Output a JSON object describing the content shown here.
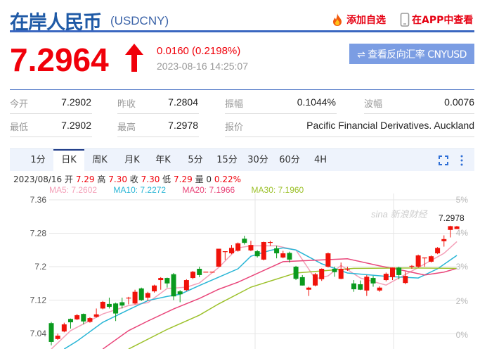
{
  "header": {
    "title": "在岸人民币",
    "code": "(USDCNY)",
    "add_watch": "添加自选",
    "view_app": "在APP中查看"
  },
  "quote": {
    "price": "7.2964",
    "direction": "up",
    "change": "0.0160 (0.2198%)",
    "time": "2023-08-16 14:25:07",
    "reverse_button": "⇌ 查看反向汇率 CNYUSD"
  },
  "stats": [
    {
      "label": "今开",
      "value": "7.2902"
    },
    {
      "label": "昨收",
      "value": "7.2804"
    },
    {
      "label": "振幅",
      "value": "0.1044%"
    },
    {
      "label": "波幅",
      "value": "0.0076"
    },
    {
      "label": "最低",
      "value": "7.2902"
    },
    {
      "label": "最高",
      "value": "7.2978"
    },
    {
      "label": "报价",
      "value": "Pacific Financial Derivatives. Auckland"
    }
  ],
  "tabs": [
    "1分",
    "日K",
    "周K",
    "月K",
    "年K",
    "5分",
    "15分",
    "30分",
    "60分",
    "4H"
  ],
  "active_tab": "日K",
  "info": {
    "date": "2023/08/16",
    "open_label": "开",
    "open": "7.29",
    "high_label": "高",
    "high": "7.30",
    "close_label": "收",
    "close": "7.30",
    "low_label": "低",
    "low": "7.29",
    "vol_label": "量",
    "vol": "0",
    "pct": "0.22%"
  },
  "ma_legend": [
    {
      "text": "MA5: 7.2602",
      "color": "#f4a0b8"
    },
    {
      "text": "MA10: 7.2272",
      "color": "#29b6d6"
    },
    {
      "text": "MA20: 7.1966",
      "color": "#e9467a"
    },
    {
      "text": "MA30: 7.1960",
      "color": "#9cc12a"
    }
  ],
  "colors": {
    "up": "#f0120a",
    "down": "#0a9a1e",
    "accent": "#1f5aa6"
  },
  "watermark": "sina 新浪财经",
  "chart_data": {
    "type": "candlestick",
    "y_ticks": [
      "7.36",
      "7.28",
      "7.2",
      "7.12",
      "7.04"
    ],
    "pct_ticks": [
      "5%",
      "4%",
      "3%",
      "2%",
      "0%"
    ],
    "ylim": [
      7.0,
      7.36
    ],
    "high_marker": "7.2978",
    "candles": [
      [
        7.065,
        7.068,
        7.012,
        7.02
      ],
      [
        7.027,
        7.04,
        7.025,
        7.035
      ],
      [
        7.045,
        7.066,
        7.043,
        7.062
      ],
      [
        7.075,
        7.076,
        7.052,
        7.067
      ],
      [
        7.074,
        7.087,
        7.072,
        7.084
      ],
      [
        7.087,
        7.088,
        7.062,
        7.069
      ],
      [
        7.068,
        7.079,
        7.066,
        7.077
      ],
      [
        7.08,
        7.1,
        7.078,
        7.086
      ],
      [
        7.1,
        7.118,
        7.098,
        7.116
      ],
      [
        7.111,
        7.126,
        7.1,
        7.104
      ],
      [
        7.112,
        7.114,
        7.07,
        7.088
      ],
      [
        7.115,
        7.126,
        7.1,
        7.107
      ],
      [
        7.126,
        7.128,
        7.11,
        7.126
      ],
      [
        7.112,
        7.145,
        7.11,
        7.14
      ],
      [
        7.148,
        7.15,
        7.118,
        7.12
      ],
      [
        7.126,
        7.14,
        7.118,
        7.137
      ],
      [
        7.141,
        7.157,
        7.138,
        7.155
      ],
      [
        7.168,
        7.175,
        7.145,
        7.173
      ],
      [
        7.173,
        7.174,
        7.15,
        7.16
      ],
      [
        7.182,
        7.185,
        7.12,
        7.129
      ],
      [
        7.141,
        7.144,
        7.115,
        7.134
      ],
      [
        7.144,
        7.17,
        7.142,
        7.168
      ],
      [
        7.173,
        7.19,
        7.17,
        7.188
      ],
      [
        7.195,
        7.2,
        7.175,
        7.18
      ],
      [
        7.188,
        7.188,
        7.188,
        7.188
      ],
      [
        7.188,
        7.188,
        7.188,
        7.188
      ],
      [
        7.2,
        7.243,
        7.2,
        7.243
      ],
      [
        7.237,
        7.237,
        7.216,
        7.237
      ],
      [
        7.232,
        7.252,
        7.23,
        7.245
      ],
      [
        7.238,
        7.258,
        7.236,
        7.256
      ],
      [
        7.267,
        7.274,
        7.253,
        7.257
      ],
      [
        7.239,
        7.262,
        7.237,
        7.252
      ],
      [
        7.237,
        7.24,
        7.222,
        7.225
      ],
      [
        7.217,
        7.26,
        7.215,
        7.259
      ],
      [
        7.259,
        7.262,
        7.25,
        7.259
      ],
      [
        7.244,
        7.25,
        7.22,
        7.232
      ],
      [
        7.222,
        7.238,
        7.22,
        7.232
      ],
      [
        7.233,
        7.236,
        7.21,
        7.217
      ],
      [
        7.2,
        7.202,
        7.168,
        7.171
      ],
      [
        7.175,
        7.18,
        7.155,
        7.155
      ],
      [
        7.145,
        7.152,
        7.13,
        7.15
      ],
      [
        7.155,
        7.185,
        7.153,
        7.182
      ],
      [
        7.17,
        7.196,
        7.166,
        7.195
      ],
      [
        7.2,
        7.234,
        7.198,
        7.232
      ],
      [
        7.195,
        7.2,
        7.176,
        7.187
      ],
      [
        7.171,
        7.21,
        7.17,
        7.195
      ],
      [
        7.195,
        7.2,
        7.19,
        7.195
      ],
      [
        7.16,
        7.168,
        7.14,
        7.146
      ],
      [
        7.158,
        7.167,
        7.144,
        7.145
      ],
      [
        7.143,
        7.18,
        7.13,
        7.176
      ],
      [
        7.173,
        7.178,
        7.152,
        7.16
      ],
      [
        7.143,
        7.153,
        7.14,
        7.15
      ],
      [
        7.168,
        7.186,
        7.165,
        7.183
      ],
      [
        7.175,
        7.198,
        7.168,
        7.198
      ],
      [
        7.198,
        7.2,
        7.17,
        7.18
      ],
      [
        7.161,
        7.188,
        7.158,
        7.178
      ],
      [
        7.2,
        7.204,
        7.195,
        7.202
      ],
      [
        7.2,
        7.229,
        7.198,
        7.227
      ],
      [
        7.222,
        7.222,
        7.2,
        7.222
      ],
      [
        7.212,
        7.227,
        7.21,
        7.225
      ],
      [
        7.232,
        7.247,
        7.23,
        7.245
      ],
      [
        7.261,
        7.275,
        7.248,
        7.266
      ],
      [
        7.288,
        7.298,
        7.27,
        7.297
      ],
      [
        7.2902,
        7.2978,
        7.2902,
        7.2964
      ]
    ],
    "ma": [
      {
        "name": "MA5",
        "color": "#f4a0b8",
        "points": [
          [
            0,
            7.003
          ],
          [
            3,
            7.047
          ],
          [
            8,
            7.087
          ],
          [
            12,
            7.107
          ],
          [
            15,
            7.114
          ],
          [
            18,
            7.148
          ],
          [
            21,
            7.151
          ],
          [
            23,
            7.161
          ],
          [
            26,
            7.198
          ],
          [
            29,
            7.245
          ],
          [
            31,
            7.25
          ],
          [
            35,
            7.25
          ],
          [
            38,
            7.24
          ],
          [
            41,
            7.171
          ],
          [
            43,
            7.178
          ],
          [
            45,
            7.203
          ],
          [
            48,
            7.173
          ],
          [
            52,
            7.156
          ],
          [
            54,
            7.173
          ],
          [
            57,
            7.198
          ],
          [
            61,
            7.232
          ],
          [
            63,
            7.26
          ]
        ]
      },
      {
        "name": "MA10",
        "color": "#29b6d6",
        "points": [
          [
            2,
            7.003
          ],
          [
            4,
            7.022
          ],
          [
            8,
            7.067
          ],
          [
            12,
            7.097
          ],
          [
            15,
            7.119
          ],
          [
            18,
            7.129
          ],
          [
            20,
            7.134
          ],
          [
            23,
            7.155
          ],
          [
            26,
            7.175
          ],
          [
            29,
            7.195
          ],
          [
            31,
            7.225
          ],
          [
            34,
            7.239
          ],
          [
            36,
            7.245
          ],
          [
            38,
            7.24
          ],
          [
            42,
            7.207
          ],
          [
            46,
            7.185
          ],
          [
            49,
            7.181
          ],
          [
            52,
            7.177
          ],
          [
            57,
            7.173
          ],
          [
            60,
            7.195
          ],
          [
            63,
            7.227
          ]
        ]
      },
      {
        "name": "MA20",
        "color": "#e9467a",
        "points": [
          [
            8,
            7.003
          ],
          [
            12,
            7.047
          ],
          [
            15,
            7.07
          ],
          [
            19,
            7.099
          ],
          [
            23,
            7.124
          ],
          [
            26,
            7.146
          ],
          [
            29,
            7.163
          ],
          [
            36,
            7.212
          ],
          [
            46,
            7.219
          ],
          [
            51,
            7.202
          ],
          [
            55,
            7.19
          ],
          [
            58,
            7.18
          ],
          [
            61,
            7.187
          ],
          [
            63,
            7.196
          ]
        ]
      },
      {
        "name": "MA30",
        "color": "#9cc12a",
        "points": [
          [
            12,
            7.003
          ],
          [
            18,
            7.05
          ],
          [
            23,
            7.084
          ],
          [
            26,
            7.111
          ],
          [
            31,
            7.151
          ],
          [
            38,
            7.185
          ],
          [
            47,
            7.196
          ],
          [
            56,
            7.197
          ],
          [
            63,
            7.196
          ]
        ]
      }
    ]
  }
}
